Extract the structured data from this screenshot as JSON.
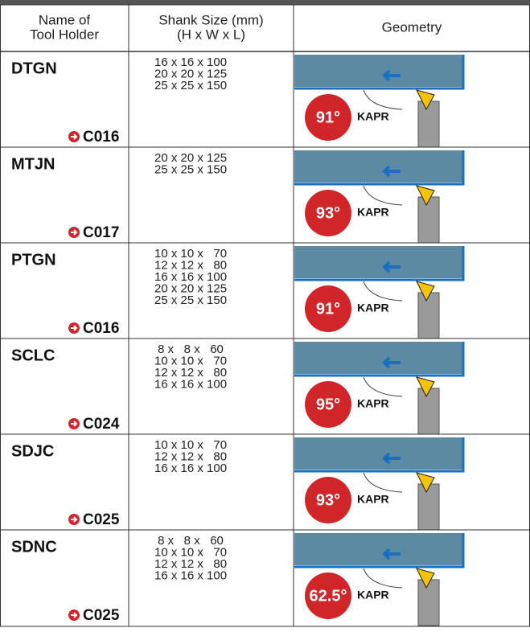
{
  "header": {
    "columns": [
      [
        "Name of",
        "Tool Holder"
      ],
      [
        "Shank Size (mm)",
        "(H x W x L)"
      ],
      [
        "Geometry"
      ]
    ]
  },
  "rows": [
    {
      "name": "DTGN",
      "ref": "C016",
      "sizes": [
        "16 x 16 x 100",
        "20 x 20 x 125",
        "25 x 25 x 150"
      ],
      "angle": "91°",
      "label": "KAPR"
    },
    {
      "name": "MTJN",
      "ref": "C017",
      "sizes": [
        "20 x 20 x 125",
        "25 x 25 x 150"
      ],
      "angle": "93°",
      "label": "KAPR"
    },
    {
      "name": "PTGN",
      "ref": "C016",
      "sizes": [
        "10 x 10 x   70",
        "12 x 12 x   80",
        "16 x 16 x 100",
        "20 x 20 x 125",
        "25 x 25 x 150"
      ],
      "angle": "91°",
      "label": "KAPR"
    },
    {
      "name": "SCLC",
      "ref": "C024",
      "sizes": [
        " 8 x   8 x   60",
        "10 x 10 x   70",
        "12 x 12 x   80",
        "16 x 16 x 100"
      ],
      "angle": "95°",
      "label": "KAPR"
    },
    {
      "name": "SDJC",
      "ref": "C025",
      "sizes": [
        "10 x 10 x   70",
        "12 x 12 x   80",
        "16 x 16 x 100"
      ],
      "angle": "93°",
      "label": "KAPR"
    },
    {
      "name": "SDNC",
      "ref": "C025",
      "sizes": [
        " 8 x   8 x   60",
        "10 x 10 x   70",
        "12 x 12 x   80",
        "16 x 16 x 100"
      ],
      "angle": "62.5°",
      "label": "KAPR"
    }
  ]
}
